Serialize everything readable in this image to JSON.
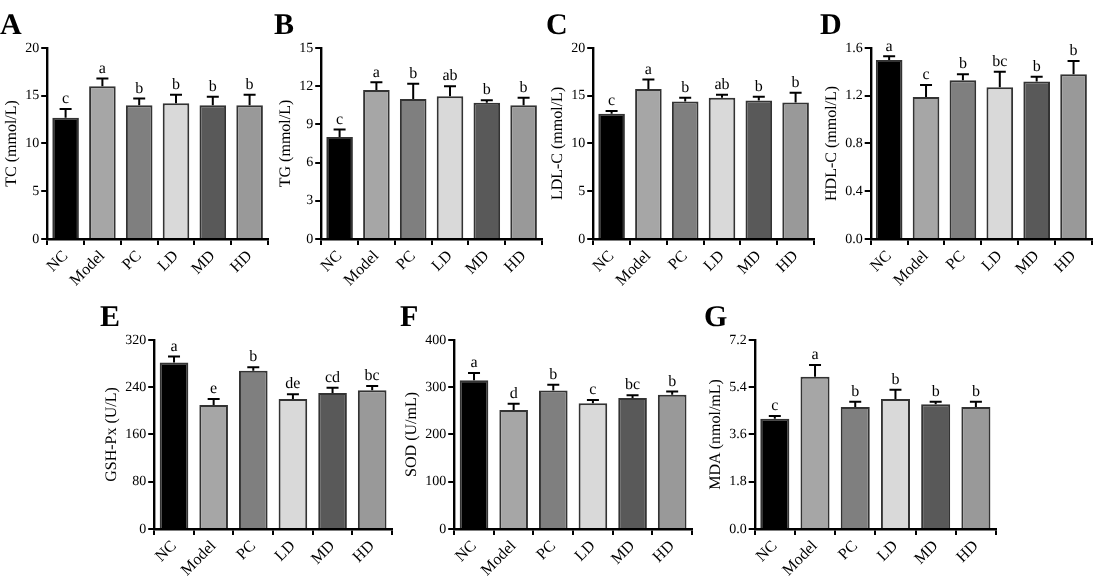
{
  "chart_data": [
    {
      "type": "bar",
      "title": "A",
      "ylabel": "TC (mmol/L)",
      "categories": [
        "NC",
        "Model",
        "PC",
        "LD",
        "MD",
        "HD"
      ],
      "colors": [
        "#000000",
        "#a6a6a6",
        "#7f7f7f",
        "#d9d9d9",
        "#595959",
        "#999999"
      ],
      "values": [
        12.7,
        16.0,
        14.0,
        14.2,
        14.0,
        14.0
      ],
      "errors": [
        0.9,
        0.8,
        0.7,
        0.9,
        0.9,
        1.1
      ],
      "ylim": [
        0,
        20
      ],
      "yticks": [
        0,
        5,
        10,
        15,
        20
      ],
      "annotations": [
        {
          "text": "c",
          "x": "NC",
          "y": 13.6
        },
        {
          "text": "a",
          "x": "Model",
          "y": 16.8
        },
        {
          "text": "b",
          "x": "PC",
          "y": 14.7
        },
        {
          "text": "b",
          "x": "LD",
          "y": 15.1
        },
        {
          "text": "b",
          "x": "MD",
          "y": 14.9
        },
        {
          "text": "b",
          "x": "HD",
          "y": 15.1
        }
      ]
    },
    {
      "type": "bar",
      "title": "B",
      "ylabel": "TG (mmol/L)",
      "categories": [
        "NC",
        "Model",
        "PC",
        "LD",
        "MD",
        "HD"
      ],
      "colors": [
        "#000000",
        "#a6a6a6",
        "#7f7f7f",
        "#d9d9d9",
        "#595959",
        "#999999"
      ],
      "values": [
        8.0,
        11.7,
        11.0,
        11.2,
        10.7,
        10.5
      ],
      "errors": [
        0.6,
        0.6,
        1.2,
        0.8,
        0.2,
        0.6
      ],
      "ylim": [
        0,
        15
      ],
      "yticks": [
        0,
        3,
        6,
        9,
        12,
        15
      ],
      "annotations": [
        {
          "text": "c",
          "x": "NC",
          "y": 8.6
        },
        {
          "text": "a",
          "x": "Model",
          "y": 12.3
        },
        {
          "text": "b",
          "x": "PC",
          "y": 12.2
        },
        {
          "text": "ab",
          "x": "LD",
          "y": 12.0
        },
        {
          "text": "b",
          "x": "MD",
          "y": 10.9
        },
        {
          "text": "b",
          "x": "HD",
          "y": 11.1
        }
      ]
    },
    {
      "type": "bar",
      "title": "C",
      "ylabel": "LDL-C (mmol/L)",
      "categories": [
        "NC",
        "Model",
        "PC",
        "LD",
        "MD",
        "HD"
      ],
      "colors": [
        "#000000",
        "#a6a6a6",
        "#7f7f7f",
        "#d9d9d9",
        "#595959",
        "#999999"
      ],
      "values": [
        13.1,
        15.7,
        14.4,
        14.8,
        14.5,
        14.3
      ],
      "errors": [
        0.3,
        1.0,
        0.4,
        0.3,
        0.4,
        1.0
      ],
      "ylim": [
        0,
        20
      ],
      "yticks": [
        0,
        5,
        10,
        15,
        20
      ],
      "annotations": [
        {
          "text": "c",
          "x": "NC",
          "y": 13.4
        },
        {
          "text": "a",
          "x": "Model",
          "y": 16.7
        },
        {
          "text": "b",
          "x": "PC",
          "y": 14.8
        },
        {
          "text": "ab",
          "x": "LD",
          "y": 15.1
        },
        {
          "text": "b",
          "x": "MD",
          "y": 14.9
        },
        {
          "text": "b",
          "x": "HD",
          "y": 15.3
        }
      ]
    },
    {
      "type": "bar",
      "title": "D",
      "ylabel": "HDL-C (mmol/L)",
      "categories": [
        "NC",
        "Model",
        "PC",
        "LD",
        "MD",
        "HD"
      ],
      "colors": [
        "#000000",
        "#a6a6a6",
        "#7f7f7f",
        "#d9d9d9",
        "#595959",
        "#999999"
      ],
      "values": [
        1.5,
        1.19,
        1.33,
        1.27,
        1.32,
        1.38
      ],
      "errors": [
        0.03,
        0.1,
        0.05,
        0.13,
        0.04,
        0.11
      ],
      "ylim": [
        0,
        1.6
      ],
      "yticks": [
        {
          "value": 0,
          "label": "0.0"
        },
        0.4,
        0.8,
        1.2,
        1.6
      ],
      "annotations": [
        {
          "text": "a",
          "x": "NC",
          "y": 1.53
        },
        {
          "text": "c",
          "x": "Model",
          "y": 1.29
        },
        {
          "text": "b",
          "x": "PC",
          "y": 1.38
        },
        {
          "text": "bc",
          "x": "LD",
          "y": 1.4
        },
        {
          "text": "b",
          "x": "MD",
          "y": 1.36
        },
        {
          "text": "b",
          "x": "HD",
          "y": 1.49
        }
      ]
    },
    {
      "type": "bar",
      "title": "E",
      "ylabel": "GSH-Px (U/L)",
      "categories": [
        "NC",
        "Model",
        "PC",
        "LD",
        "MD",
        "HD"
      ],
      "colors": [
        "#000000",
        "#a6a6a6",
        "#7f7f7f",
        "#d9d9d9",
        "#595959",
        "#999999"
      ],
      "values": [
        282,
        210,
        268,
        220,
        230,
        235
      ],
      "errors": [
        10,
        10,
        6,
        8,
        9,
        7
      ],
      "ylim": [
        0,
        320
      ],
      "yticks": [
        0,
        80,
        160,
        240,
        320
      ],
      "annotations": [
        {
          "text": "a",
          "x": "NC",
          "y": 292
        },
        {
          "text": "e",
          "x": "Model",
          "y": 220
        },
        {
          "text": "b",
          "x": "PC",
          "y": 274
        },
        {
          "text": "de",
          "x": "LD",
          "y": 228
        },
        {
          "text": "cd",
          "x": "MD",
          "y": 239
        },
        {
          "text": "bc",
          "x": "HD",
          "y": 242
        }
      ]
    },
    {
      "type": "bar",
      "title": "F",
      "ylabel": "SOD (U/mL)",
      "categories": [
        "NC",
        "Model",
        "PC",
        "LD",
        "MD",
        "HD"
      ],
      "colors": [
        "#000000",
        "#a6a6a6",
        "#7f7f7f",
        "#d9d9d9",
        "#595959",
        "#999999"
      ],
      "values": [
        315,
        252,
        293,
        266,
        277,
        284
      ],
      "errors": [
        15,
        13,
        12,
        7,
        6,
        7
      ],
      "ylim": [
        0,
        400
      ],
      "yticks": [
        0,
        100,
        200,
        300,
        400
      ],
      "annotations": [
        {
          "text": "a",
          "x": "NC",
          "y": 330
        },
        {
          "text": "d",
          "x": "Model",
          "y": 265
        },
        {
          "text": "b",
          "x": "PC",
          "y": 305
        },
        {
          "text": "c",
          "x": "LD",
          "y": 273
        },
        {
          "text": "bc",
          "x": "MD",
          "y": 283
        },
        {
          "text": "b",
          "x": "HD",
          "y": 291
        }
      ]
    },
    {
      "type": "bar",
      "title": "G",
      "ylabel": "MDA (nmol/mL)",
      "categories": [
        "NC",
        "Model",
        "PC",
        "LD",
        "MD",
        "HD"
      ],
      "colors": [
        "#000000",
        "#a6a6a6",
        "#7f7f7f",
        "#d9d9d9",
        "#595959",
        "#999999"
      ],
      "values": [
        4.2,
        5.8,
        4.65,
        4.95,
        4.75,
        4.65
      ],
      "errors": [
        0.1,
        0.45,
        0.2,
        0.35,
        0.1,
        0.2
      ],
      "ylim": [
        0,
        7.2
      ],
      "yticks": [
        {
          "value": 0,
          "label": "0.0"
        },
        1.8,
        3.6,
        5.4,
        7.2
      ],
      "annotations": [
        {
          "text": "c",
          "x": "NC",
          "y": 4.3
        },
        {
          "text": "a",
          "x": "Model",
          "y": 6.25
        },
        {
          "text": "b",
          "x": "PC",
          "y": 4.85
        },
        {
          "text": "b",
          "x": "LD",
          "y": 5.3
        },
        {
          "text": "b",
          "x": "MD",
          "y": 4.85
        },
        {
          "text": "b",
          "x": "HD",
          "y": 4.85
        }
      ]
    }
  ]
}
